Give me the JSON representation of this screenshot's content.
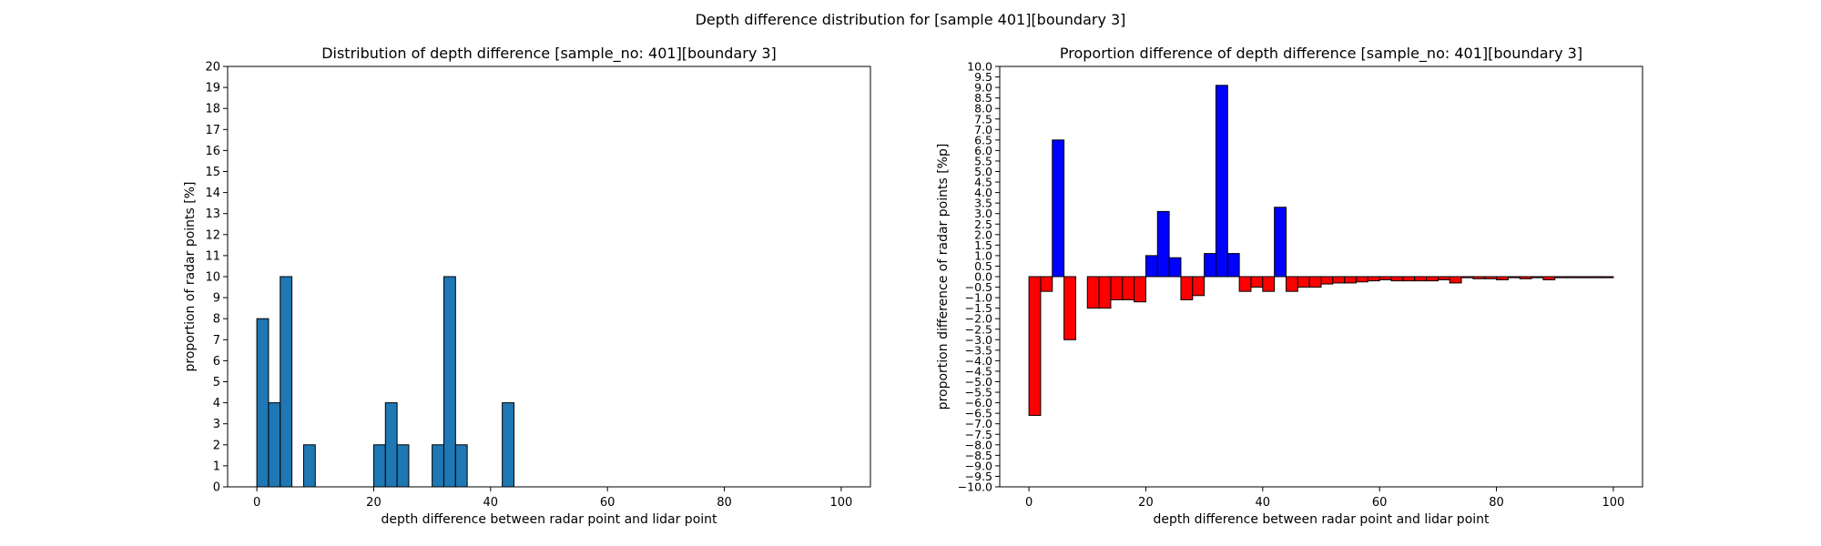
{
  "suptitle": "Depth difference distribution for [sample 401][boundary 3]",
  "chart_data": [
    {
      "type": "bar",
      "title": "Distribution of depth difference [sample_no: 401][boundary 3]",
      "xlabel": "depth difference between radar point and lidar point",
      "ylabel": "proportion of radar points [%]",
      "xlim": [
        -5,
        105
      ],
      "ylim": [
        0,
        20
      ],
      "xticks": [
        0,
        20,
        40,
        60,
        80,
        100
      ],
      "yticks": [
        0,
        1,
        2,
        3,
        4,
        5,
        6,
        7,
        8,
        9,
        10,
        11,
        12,
        13,
        14,
        15,
        16,
        17,
        18,
        19,
        20
      ],
      "bin_width": 2,
      "bar_color": "#1f77b4",
      "bins": [
        {
          "x": 0,
          "value": 8
        },
        {
          "x": 2,
          "value": 4
        },
        {
          "x": 4,
          "value": 10
        },
        {
          "x": 8,
          "value": 2
        },
        {
          "x": 20,
          "value": 2
        },
        {
          "x": 22,
          "value": 4
        },
        {
          "x": 24,
          "value": 2
        },
        {
          "x": 30,
          "value": 2
        },
        {
          "x": 32,
          "value": 10
        },
        {
          "x": 34,
          "value": 2
        },
        {
          "x": 42,
          "value": 4
        }
      ]
    },
    {
      "type": "bar",
      "title": "Proportion difference of depth difference [sample_no: 401][boundary 3]",
      "xlabel": "depth difference between radar point and lidar point",
      "ylabel": "proportion difference of radar points [%p]",
      "xlim": [
        -5,
        105
      ],
      "ylim": [
        -10,
        10
      ],
      "xticks": [
        0,
        20,
        40,
        60,
        80,
        100
      ],
      "ytick_step": 0.5,
      "bin_width": 2,
      "positive_color": "#0000ff",
      "negative_color": "#ff0000",
      "bins": [
        {
          "x": 0,
          "value": -6.6
        },
        {
          "x": 2,
          "value": -0.7
        },
        {
          "x": 4,
          "value": 6.5
        },
        {
          "x": 6,
          "value": -3.0
        },
        {
          "x": 10,
          "value": -1.5
        },
        {
          "x": 12,
          "value": -1.5
        },
        {
          "x": 14,
          "value": -1.1
        },
        {
          "x": 16,
          "value": -1.1
        },
        {
          "x": 18,
          "value": -1.2
        },
        {
          "x": 20,
          "value": 1.0
        },
        {
          "x": 22,
          "value": 3.1
        },
        {
          "x": 24,
          "value": 0.9
        },
        {
          "x": 26,
          "value": -1.1
        },
        {
          "x": 28,
          "value": -0.9
        },
        {
          "x": 30,
          "value": 1.1
        },
        {
          "x": 32,
          "value": 9.1
        },
        {
          "x": 34,
          "value": 1.1
        },
        {
          "x": 36,
          "value": -0.7
        },
        {
          "x": 38,
          "value": -0.5
        },
        {
          "x": 40,
          "value": -0.7
        },
        {
          "x": 42,
          "value": 3.3
        },
        {
          "x": 44,
          "value": -0.7
        },
        {
          "x": 46,
          "value": -0.5
        },
        {
          "x": 48,
          "value": -0.5
        },
        {
          "x": 50,
          "value": -0.35
        },
        {
          "x": 52,
          "value": -0.3
        },
        {
          "x": 54,
          "value": -0.3
        },
        {
          "x": 56,
          "value": -0.25
        },
        {
          "x": 58,
          "value": -0.2
        },
        {
          "x": 60,
          "value": -0.15
        },
        {
          "x": 62,
          "value": -0.2
        },
        {
          "x": 64,
          "value": -0.2
        },
        {
          "x": 66,
          "value": -0.2
        },
        {
          "x": 68,
          "value": -0.2
        },
        {
          "x": 70,
          "value": -0.15
        },
        {
          "x": 72,
          "value": -0.3
        },
        {
          "x": 74,
          "value": -0.05
        },
        {
          "x": 76,
          "value": -0.1
        },
        {
          "x": 78,
          "value": -0.1
        },
        {
          "x": 80,
          "value": -0.15
        },
        {
          "x": 82,
          "value": -0.05
        },
        {
          "x": 84,
          "value": -0.1
        },
        {
          "x": 86,
          "value": -0.05
        },
        {
          "x": 88,
          "value": -0.15
        },
        {
          "x": 90,
          "value": -0.05
        },
        {
          "x": 92,
          "value": -0.05
        },
        {
          "x": 94,
          "value": -0.05
        },
        {
          "x": 96,
          "value": -0.05
        },
        {
          "x": 98,
          "value": -0.05
        }
      ]
    }
  ]
}
